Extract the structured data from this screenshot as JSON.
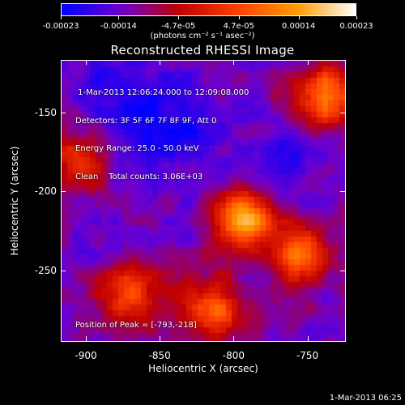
{
  "colorbar": {
    "tick_labels": [
      "-0.00023",
      "-0.00014",
      "-4.7e-05",
      "4.7e-05",
      "0.00014",
      "0.00023"
    ],
    "tick_values": [
      -0.00023,
      -0.00014,
      -4.7e-05,
      4.7e-05,
      0.00014,
      0.00023
    ],
    "range": [
      -0.00023,
      0.00023
    ],
    "units": "(photons cm⁻² s⁻¹ asec⁻²)",
    "colors": [
      "#0000ff",
      "#6a00d0",
      "#c00000",
      "#ff4000",
      "#ff9a00",
      "#ffffff"
    ]
  },
  "plot": {
    "title": "Reconstructed RHESSI Image",
    "info_lines": [
      " 1-Mar-2013 12:06:24.000 to 12:09:08.000",
      "Detectors: 3F 5F 6F 7F 8F 9F, Att 0",
      "Energy Range: 25.0 - 50.0 keV",
      "Clean    Total counts: 3.06E+03"
    ],
    "peak_label": "Position of Peak = [-793,-218]",
    "xlabel": "Heliocentric X (arcsec)",
    "ylabel": "Heliocentric Y (arcsec)",
    "xticks": [
      "-900",
      "-850",
      "-800",
      "-750"
    ],
    "xtick_values": [
      -900,
      -850,
      -800,
      -750
    ],
    "yticks": [
      "-150",
      "-200",
      "-250"
    ],
    "ytick_values": [
      -150,
      -200,
      -250
    ],
    "xlim": [
      -917,
      -724
    ],
    "ylim": [
      -295,
      -117
    ]
  },
  "chart_data": {
    "type": "heatmap",
    "title": "Reconstructed RHESSI Image",
    "xlabel": "Heliocentric X (arcsec)",
    "ylabel": "Heliocentric Y (arcsec)",
    "xlim": [
      -917,
      -724
    ],
    "ylim": [
      -295,
      -117
    ],
    "peak": [
      -793,
      -218
    ],
    "hot_spots": [
      {
        "x": -793,
        "y": -218,
        "level": 1.0
      },
      {
        "x": -738,
        "y": -140,
        "level": 0.85
      },
      {
        "x": -755,
        "y": -240,
        "level": 0.7
      },
      {
        "x": -815,
        "y": -275,
        "level": 0.75
      },
      {
        "x": -870,
        "y": -265,
        "level": 0.6
      },
      {
        "x": -905,
        "y": -180,
        "level": 0.5
      }
    ],
    "cold_regions": [
      {
        "x": -840,
        "y": -160,
        "level": -0.7
      },
      {
        "x": -880,
        "y": -140,
        "level": -0.5
      },
      {
        "x": -760,
        "y": -175,
        "level": -0.4
      }
    ]
  },
  "footer": {
    "timestamp": "1-Mar-2013 06:25"
  }
}
